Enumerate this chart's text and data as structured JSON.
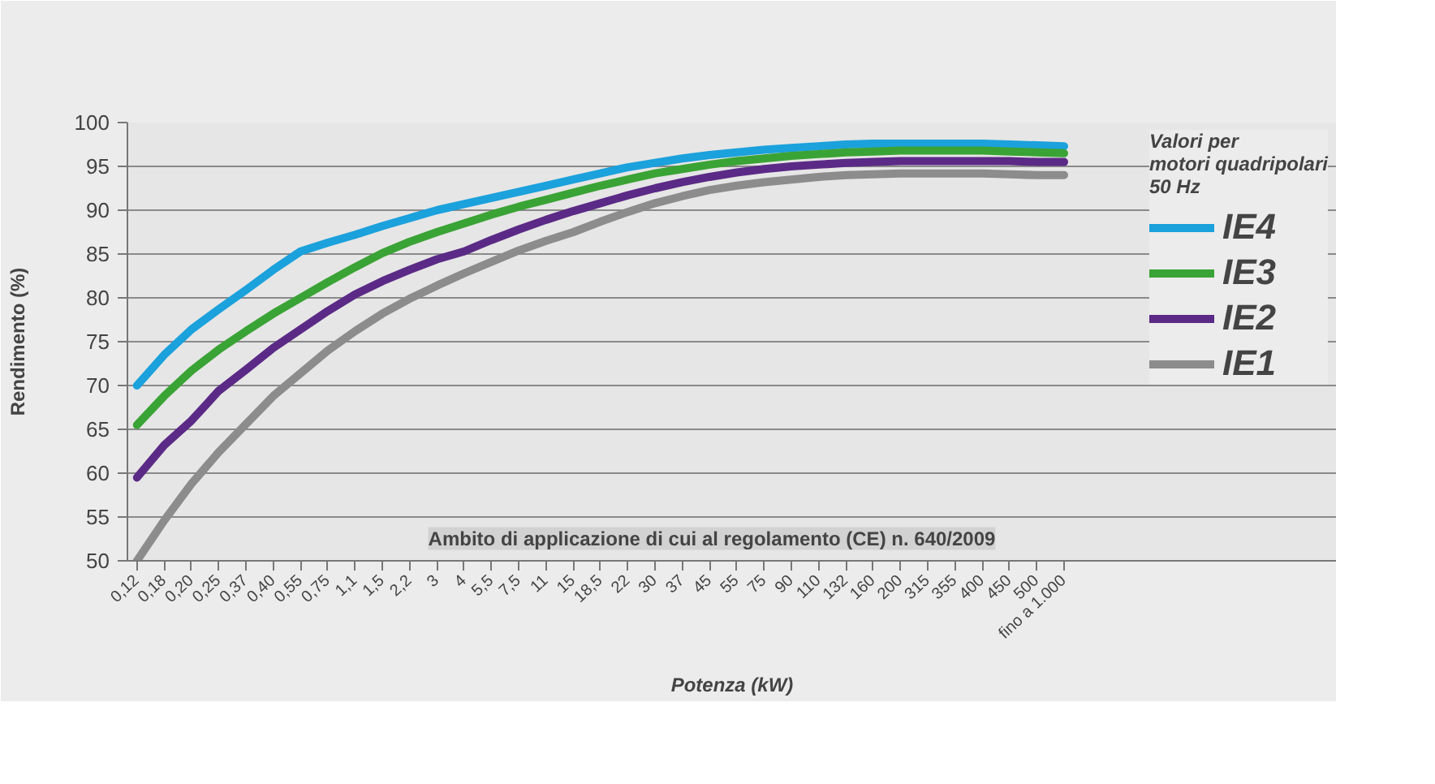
{
  "chart_data": {
    "type": "line",
    "ylabel": "Rendimento (%)",
    "xlabel": "Potenza (kW)",
    "legend_title": "Valori per\nmotori quadripolari\n50 Hz",
    "categories": [
      "0,12",
      "0,18",
      "0,20",
      "0,25",
      "0,37",
      "0,40",
      "0,55",
      "0,75",
      "1,1",
      "1,5",
      "2,2",
      "3",
      "4",
      "5,5",
      "7,5",
      "11",
      "15",
      "18,5",
      "22",
      "30",
      "37",
      "45",
      "55",
      "75",
      "90",
      "110",
      "132",
      "160",
      "200",
      "315",
      "355",
      "400",
      "450",
      "500",
      "fino a 1.000"
    ],
    "series": [
      {
        "name": "IE4",
        "color": "#1ba1dc",
        "values": [
          70,
          73.5,
          76.4,
          78.7,
          80.9,
          83.2,
          85.3,
          86.3,
          87.2,
          88.2,
          89.1,
          90,
          90.7,
          91.4,
          92.1,
          92.8,
          93.5,
          94.2,
          94.9,
          95.4,
          95.9,
          96.3,
          96.6,
          96.9,
          97.1,
          97.3,
          97.5,
          97.6,
          97.6,
          97.6,
          97.6,
          97.6,
          97.5,
          97.4,
          97.3
        ]
      },
      {
        "name": "IE3",
        "color": "#3aa335",
        "values": [
          65.5,
          68.8,
          71.7,
          74.1,
          76.2,
          78.2,
          80,
          81.8,
          83.5,
          85.1,
          86.4,
          87.5,
          88.5,
          89.5,
          90.4,
          91.2,
          92,
          92.8,
          93.5,
          94.2,
          94.7,
          95.2,
          95.6,
          95.9,
          96.2,
          96.4,
          96.6,
          96.7,
          96.8,
          96.8,
          96.8,
          96.8,
          96.7,
          96.6,
          96.5
        ]
      },
      {
        "name": "IE2",
        "color": "#5b2a86",
        "values": [
          59.5,
          63.2,
          66,
          69.4,
          71.8,
          74.3,
          76.4,
          78.5,
          80.4,
          81.9,
          83.2,
          84.4,
          85.3,
          86.6,
          87.8,
          88.9,
          89.9,
          90.8,
          91.7,
          92.5,
          93.2,
          93.8,
          94.3,
          94.7,
          95,
          95.2,
          95.4,
          95.5,
          95.6,
          95.6,
          95.6,
          95.6,
          95.6,
          95.5,
          95.5
        ]
      },
      {
        "name": "IE1",
        "color": "#8c8c8c",
        "values": [
          50,
          54.6,
          58.8,
          62.4,
          65.6,
          68.8,
          71.4,
          74,
          76.2,
          78.2,
          79.9,
          81.4,
          82.8,
          84.1,
          85.4,
          86.5,
          87.5,
          88.7,
          89.8,
          90.8,
          91.6,
          92.3,
          92.8,
          93.2,
          93.5,
          93.8,
          94,
          94.1,
          94.2,
          94.2,
          94.2,
          94.2,
          94.1,
          94,
          94
        ]
      }
    ],
    "ylim": [
      50,
      100
    ],
    "yticks": [
      50,
      55,
      60,
      65,
      70,
      75,
      80,
      85,
      90,
      95,
      100
    ],
    "grid": "y",
    "legend": "top right",
    "marker": "none",
    "line_style": "solid",
    "annotations": [
      "Ambito di applicazione di cui al regolamento (CE) n. 640/2009"
    ]
  }
}
